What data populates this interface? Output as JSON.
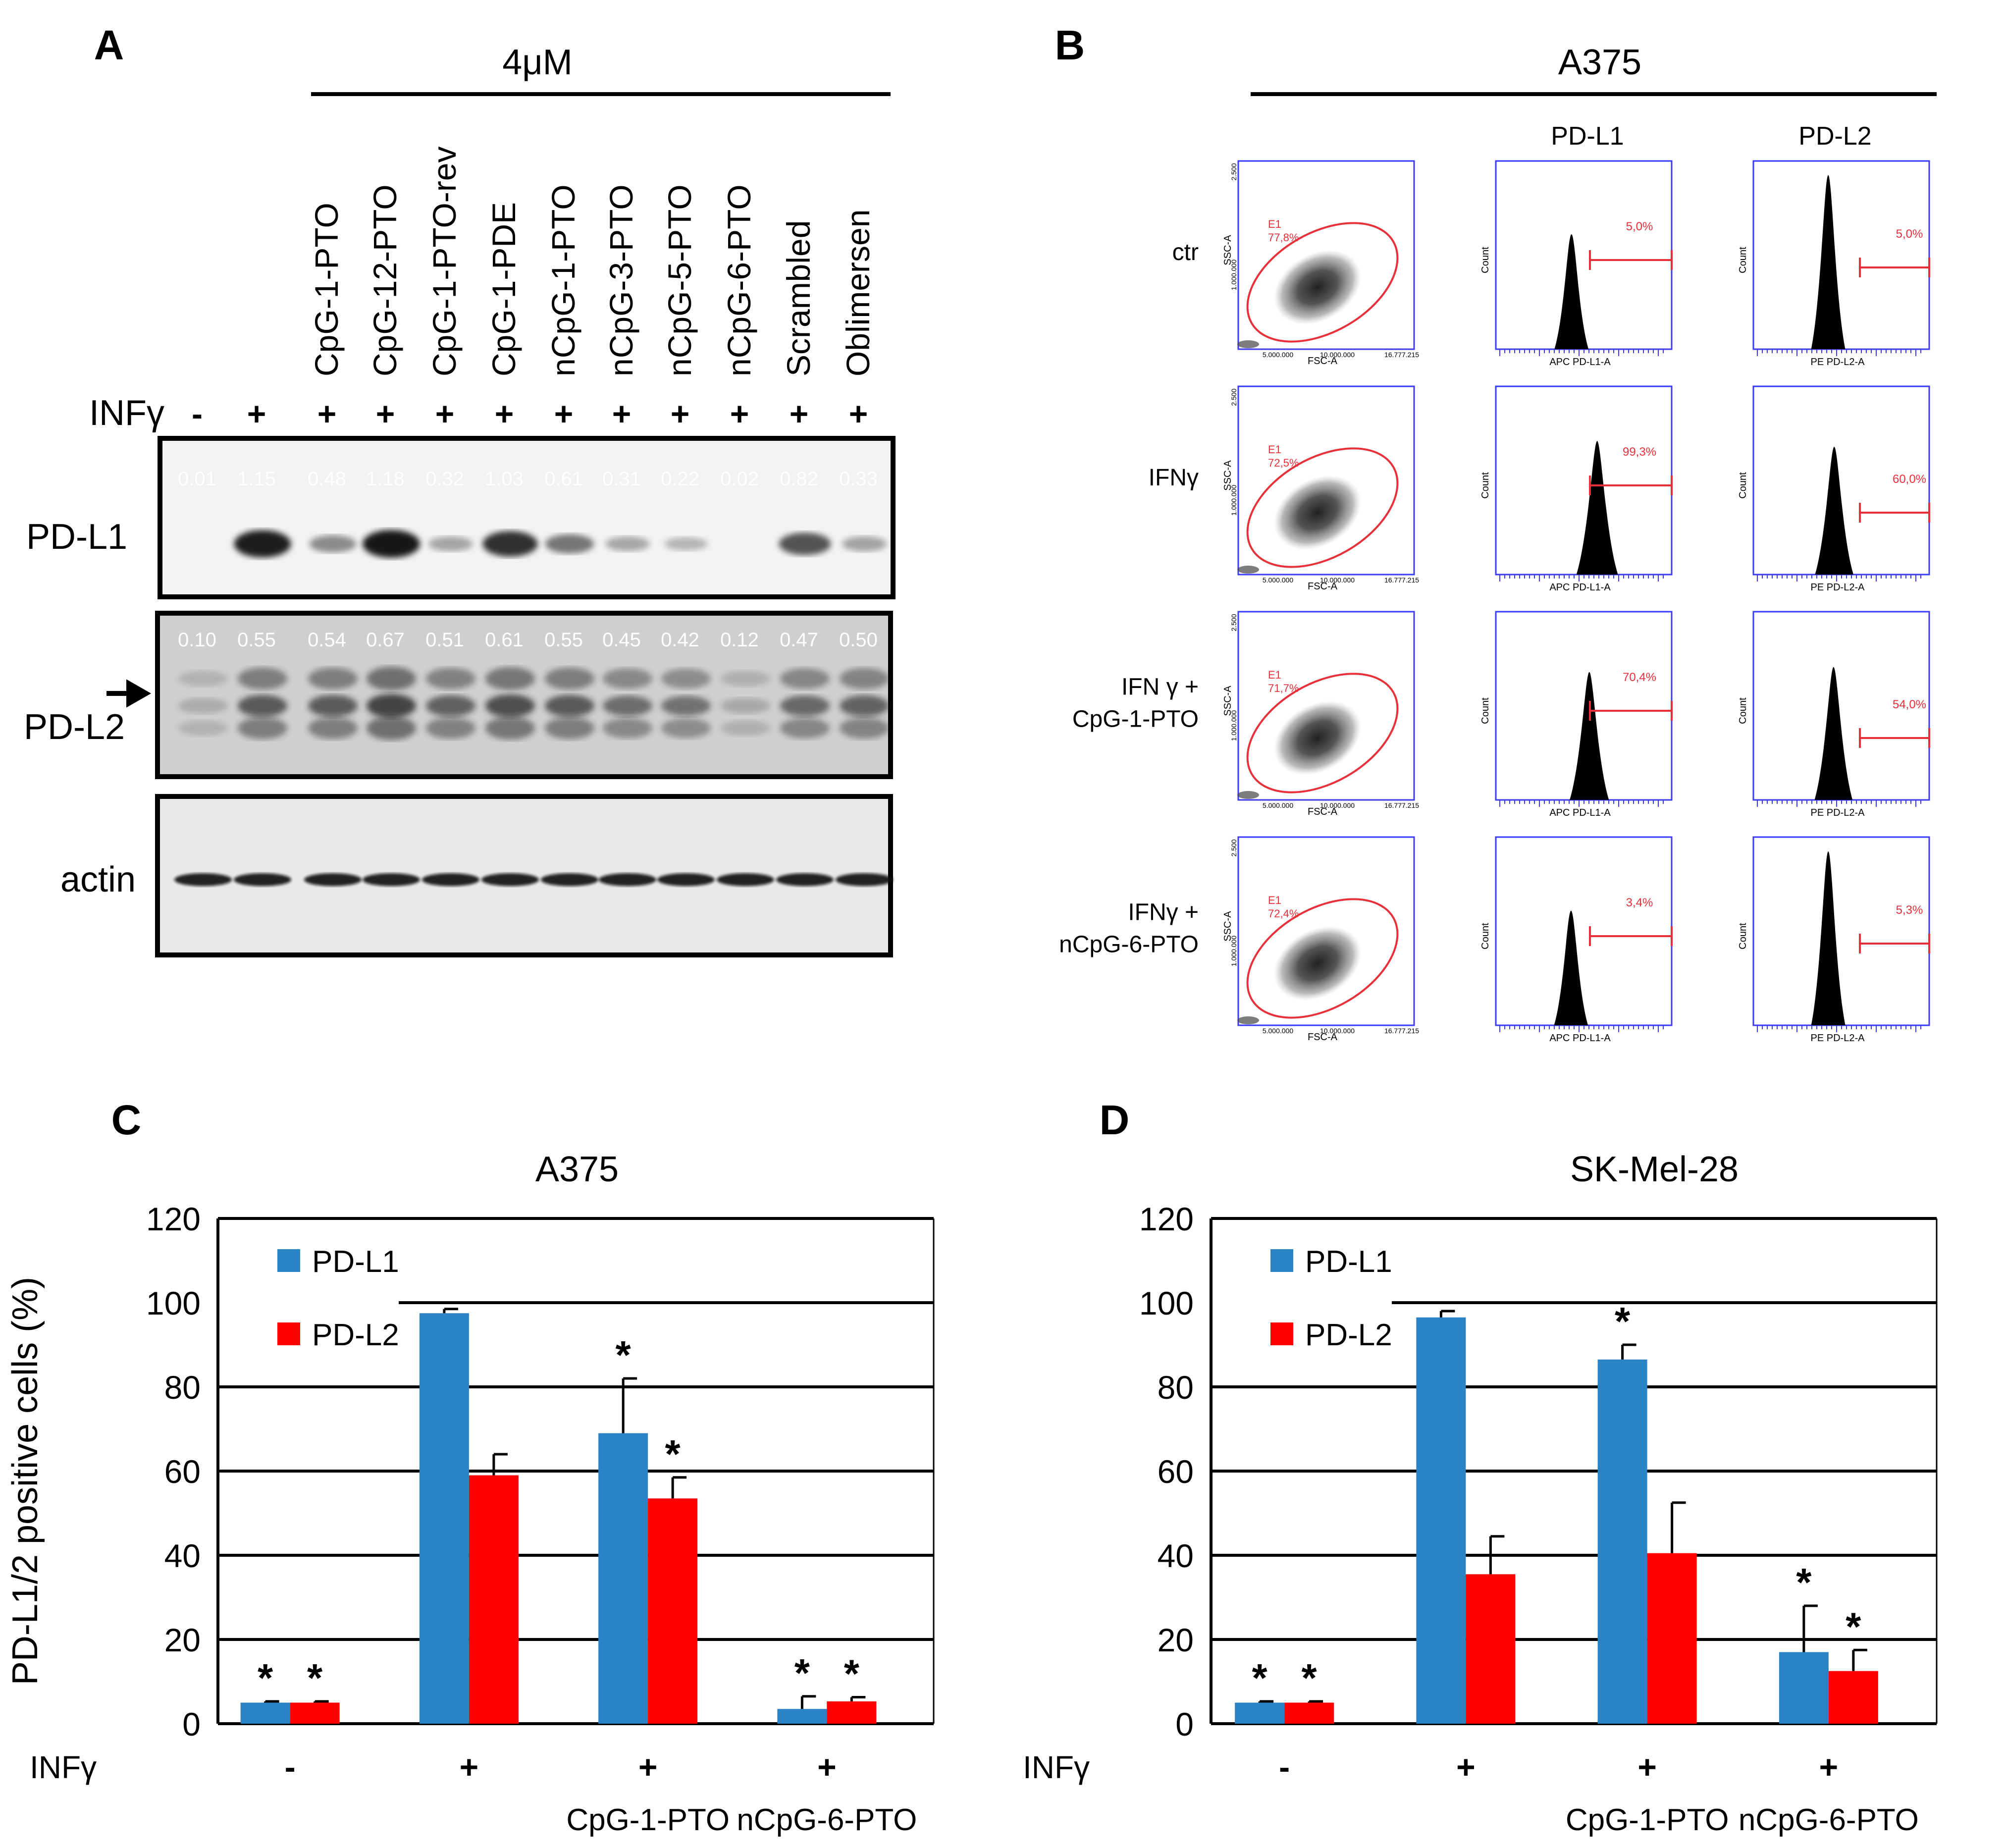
{
  "panel_letters": [
    "A",
    "B",
    "C",
    "D"
  ],
  "panel_a": {
    "concentration": "4μM",
    "lanes": [
      "",
      "",
      "CpG-1-PTO",
      "CpG-12-PTO",
      "CpG-1-PTO-rev",
      "CpG-1-PDE",
      "nCpG-1-PTO",
      "nCpG-3-PTO",
      "nCpG-5-PTO",
      "nCpG-6-PTO",
      "Scrambled",
      "Oblimersen"
    ],
    "infg_label": "INFγ",
    "infg_marks": [
      "-",
      "+",
      "+",
      "+",
      "+",
      "+",
      "+",
      "+",
      "+",
      "+",
      "+",
      "+"
    ],
    "blots": [
      {
        "label": "PD-L1",
        "quant": [
          "0.01",
          "1.15",
          "0.48",
          "1.18",
          "0.32",
          "1.03",
          "0.61",
          "0.31",
          "0.22",
          "0.02",
          "0.82",
          "0.33"
        ]
      },
      {
        "label": "PD-L2",
        "quant": [
          "0.10",
          "0.55",
          "0.54",
          "0.67",
          "0.51",
          "0.61",
          "0.55",
          "0.45",
          "0.42",
          "0.12",
          "0.47",
          "0.50"
        ]
      },
      {
        "label": "actin",
        "quant": []
      }
    ]
  },
  "panel_b": {
    "cell_line": "A375",
    "col_headers": [
      "PD-L1",
      "PD-L2"
    ],
    "rows": [
      {
        "label": [
          "ctr"
        ],
        "gate_pct": "77,8%",
        "pdl1_pct": "5,0%",
        "pdl2_pct": "5,0%"
      },
      {
        "label": [
          "IFNγ"
        ],
        "gate_pct": "72,5%",
        "pdl1_pct": "99,3%",
        "pdl2_pct": "60,0%"
      },
      {
        "label": [
          "IFN γ +",
          "CpG-1-PTO"
        ],
        "gate_pct": "71,7%",
        "pdl1_pct": "70,4%",
        "pdl2_pct": "54,0%"
      },
      {
        "label": [
          "IFNγ +",
          "nCpG-6-PTO"
        ],
        "gate_pct": "72,4%",
        "pdl1_pct": "3,4%",
        "pdl2_pct": "5,3%"
      }
    ],
    "gate_name": "E1",
    "scatter_axes": {
      "x": "FSC-A",
      "y": "SSC-A",
      "x_ticks": [
        "5.000.000",
        "10.000.000",
        "16.777.215"
      ],
      "y_ticks": [
        "1.000.000",
        "2.500"
      ]
    },
    "hist_pdl1": {
      "x": "APC PD-L1-A",
      "y": "Count"
    },
    "hist_pdl2": {
      "x": "PE PD-L2-A",
      "y": "Count"
    }
  },
  "chart_data": [
    {
      "type": "bar",
      "panel": "C",
      "title": "A375",
      "ylabel": "PD-L1/2 positive cells (%)",
      "ylim": [
        0,
        120
      ],
      "yticks": [
        "0",
        "20",
        "40",
        "60",
        "80",
        "100",
        "120"
      ],
      "row_label": "INFγ",
      "categories": [
        "-",
        "+",
        "+",
        "+"
      ],
      "treatments": [
        "",
        "",
        "CpG-1-PTO",
        "nCpG-6-PTO"
      ],
      "series": [
        {
          "name": "PD-L1",
          "color": "#2b82c5",
          "values": [
            5,
            97.5,
            69,
            3.5
          ],
          "errors": [
            0.3,
            1,
            13,
            3
          ],
          "stars": [
            "*",
            "",
            "*",
            "*"
          ]
        },
        {
          "name": "PD-L2",
          "color": "#ff0000",
          "values": [
            5,
            59,
            53.5,
            5.3
          ],
          "errors": [
            0.3,
            5,
            5,
            1
          ],
          "stars": [
            "*",
            "",
            "*",
            "*"
          ]
        }
      ]
    },
    {
      "type": "bar",
      "panel": "D",
      "title": "SK-Mel-28",
      "ylabel": "",
      "ylim": [
        0,
        120
      ],
      "yticks": [
        "0",
        "20",
        "40",
        "60",
        "80",
        "100",
        "120"
      ],
      "row_label": "INFγ",
      "categories": [
        "-",
        "+",
        "+",
        "+"
      ],
      "treatments": [
        "",
        "",
        "CpG-1-PTO",
        "nCpG-6-PTO"
      ],
      "series": [
        {
          "name": "PD-L1",
          "color": "#2b82c5",
          "values": [
            5,
            96.5,
            86.5,
            17
          ],
          "errors": [
            0.3,
            1.5,
            3.5,
            11
          ],
          "stars": [
            "*",
            "",
            "*",
            "*"
          ]
        },
        {
          "name": "PD-L2",
          "color": "#ff0000",
          "values": [
            5,
            35.5,
            40.5,
            12.5
          ],
          "errors": [
            0.3,
            9,
            12,
            5
          ],
          "stars": [
            "*",
            "",
            "",
            "*"
          ]
        }
      ]
    }
  ]
}
